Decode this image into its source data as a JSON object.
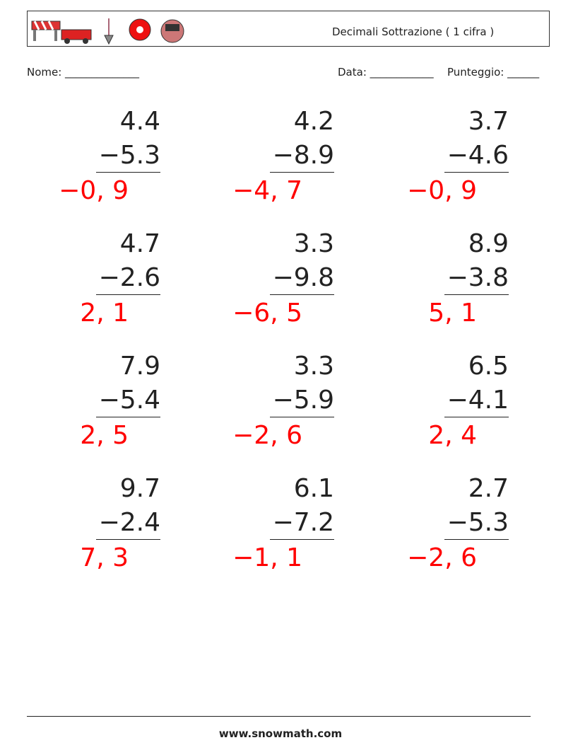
{
  "header": {
    "title": "Decimali Sottrazione ( 1 cifra )"
  },
  "fields": {
    "name": "Nome: ______________",
    "date": "Data: ____________",
    "score": "Punteggio: ______"
  },
  "problems": [
    {
      "top": "4.4",
      "bottom": "−5.3",
      "answer": "−0, 9"
    },
    {
      "top": "4.2",
      "bottom": "−8.9",
      "answer": "−4, 7"
    },
    {
      "top": "3.7",
      "bottom": "−4.6",
      "answer": "−0, 9"
    },
    {
      "top": "4.7",
      "bottom": "−2.6",
      "answer": "2, 1"
    },
    {
      "top": "3.3",
      "bottom": "−9.8",
      "answer": "−6, 5"
    },
    {
      "top": "8.9",
      "bottom": "−3.8",
      "answer": "5, 1"
    },
    {
      "top": "7.9",
      "bottom": "−5.4",
      "answer": "2, 5"
    },
    {
      "top": "3.3",
      "bottom": "−5.9",
      "answer": "−2, 6"
    },
    {
      "top": "6.5",
      "bottom": "−4.1",
      "answer": "2, 4"
    },
    {
      "top": "9.7",
      "bottom": "−2.4",
      "answer": "7, 3"
    },
    {
      "top": "6.1",
      "bottom": "−7.2",
      "answer": "−1, 1"
    },
    {
      "top": "2.7",
      "bottom": "−5.3",
      "answer": "−2, 6"
    }
  ],
  "footer": {
    "site": "www.snowmath.com"
  }
}
